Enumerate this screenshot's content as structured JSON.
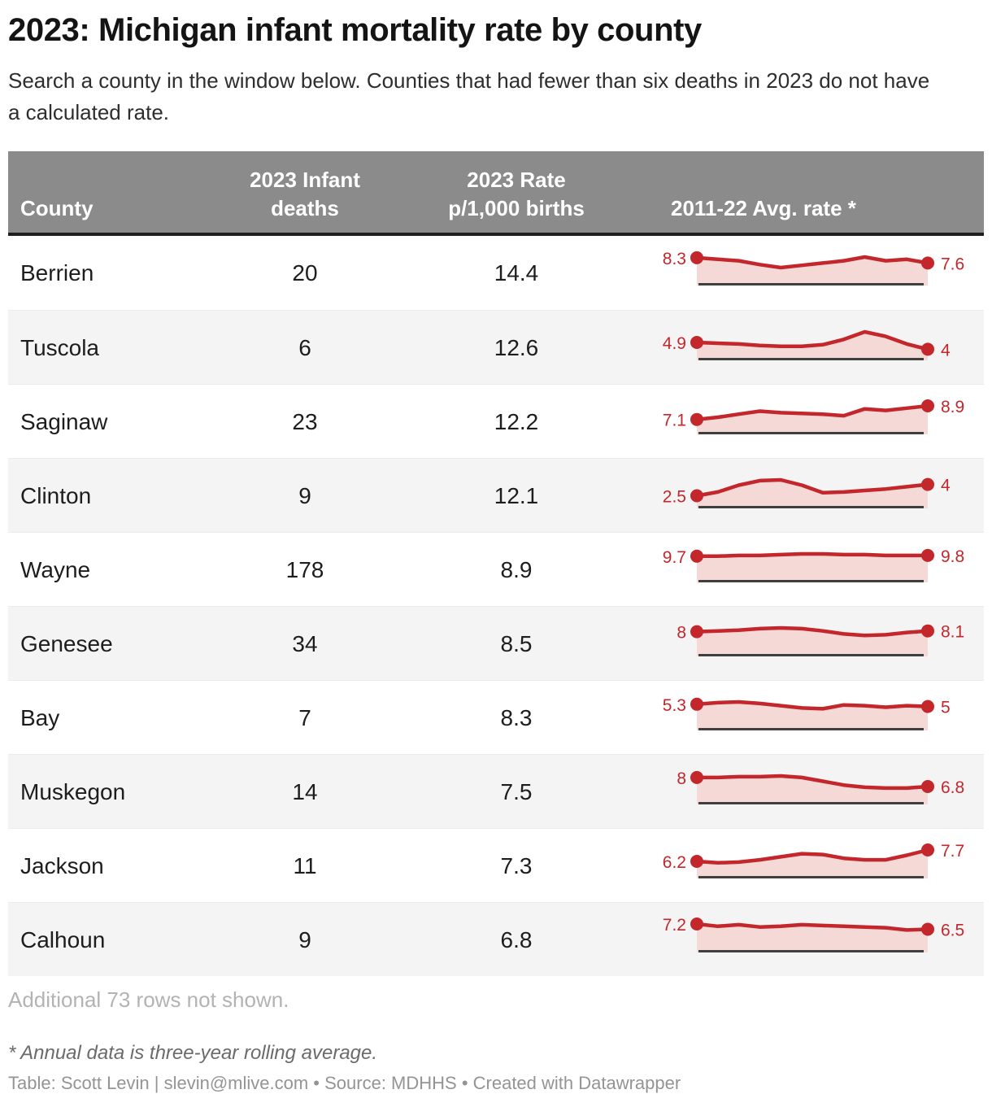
{
  "header": {
    "title": "2023: Michigan infant mortality rate by county",
    "subtitle": "Search a county in the window below. Counties that had fewer than six deaths in 2023 do not have a calculated rate."
  },
  "chart_data": {
    "type": "table",
    "title": "2023: Michigan infant mortality rate by county",
    "columns": [
      "County",
      "2023 Infant deaths",
      "2023 Rate p/1,000 births",
      "2011-22 Avg. rate *"
    ],
    "sparkline_period": "2011-22",
    "sparkline_note": "Sparkline shows three-year rolling average rate; start and end values labeled. Intermediate values estimated from line shape.",
    "rows": [
      {
        "county": "Berrien",
        "deaths": "20",
        "rate": "14.4",
        "spark": {
          "start_label": "8.3",
          "end_label": "7.6",
          "values": [
            8.3,
            8.1,
            7.9,
            7.4,
            7.0,
            7.3,
            7.6,
            7.9,
            8.4,
            7.9,
            8.1,
            7.6
          ]
        }
      },
      {
        "county": "Tuscola",
        "deaths": "6",
        "rate": "12.6",
        "spark": {
          "start_label": "4.9",
          "end_label": "4",
          "values": [
            4.9,
            4.8,
            4.7,
            4.5,
            4.4,
            4.4,
            4.6,
            5.3,
            6.3,
            5.7,
            4.7,
            4.0
          ]
        }
      },
      {
        "county": "Saginaw",
        "deaths": "23",
        "rate": "12.2",
        "spark": {
          "start_label": "7.1",
          "end_label": "8.9",
          "values": [
            7.1,
            7.4,
            7.8,
            8.2,
            8.0,
            7.9,
            7.8,
            7.6,
            8.5,
            8.3,
            8.6,
            8.9
          ]
        }
      },
      {
        "county": "Clinton",
        "deaths": "9",
        "rate": "12.1",
        "spark": {
          "start_label": "2.5",
          "end_label": "4",
          "values": [
            2.5,
            3.0,
            3.9,
            4.5,
            4.6,
            3.9,
            2.9,
            3.0,
            3.2,
            3.4,
            3.7,
            4.0
          ]
        }
      },
      {
        "county": "Wayne",
        "deaths": "178",
        "rate": "8.9",
        "spark": {
          "start_label": "9.7",
          "end_label": "9.8",
          "values": [
            9.7,
            9.7,
            9.8,
            9.8,
            9.9,
            10.0,
            10.0,
            9.9,
            9.9,
            9.8,
            9.8,
            9.8
          ]
        }
      },
      {
        "county": "Genesee",
        "deaths": "34",
        "rate": "8.5",
        "spark": {
          "start_label": "8",
          "end_label": "8.1",
          "values": [
            8.0,
            8.1,
            8.2,
            8.4,
            8.5,
            8.4,
            8.1,
            7.7,
            7.5,
            7.6,
            7.9,
            8.1
          ]
        }
      },
      {
        "county": "Bay",
        "deaths": "7",
        "rate": "8.3",
        "spark": {
          "start_label": "5.3",
          "end_label": "5",
          "values": [
            5.3,
            5.5,
            5.6,
            5.4,
            5.1,
            4.8,
            4.7,
            5.2,
            5.1,
            4.9,
            5.1,
            5.0
          ]
        }
      },
      {
        "county": "Muskegon",
        "deaths": "14",
        "rate": "7.5",
        "spark": {
          "start_label": "8",
          "end_label": "6.8",
          "values": [
            8.0,
            8.0,
            8.1,
            8.1,
            8.2,
            8.0,
            7.5,
            7.0,
            6.7,
            6.6,
            6.6,
            6.8
          ]
        }
      },
      {
        "county": "Jackson",
        "deaths": "11",
        "rate": "7.3",
        "spark": {
          "start_label": "6.2",
          "end_label": "7.7",
          "values": [
            6.2,
            6.0,
            6.1,
            6.4,
            6.8,
            7.2,
            7.1,
            6.6,
            6.4,
            6.4,
            7.0,
            7.7
          ]
        }
      },
      {
        "county": "Calhoun",
        "deaths": "9",
        "rate": "6.8",
        "spark": {
          "start_label": "7.2",
          "end_label": "6.5",
          "values": [
            7.2,
            6.9,
            7.1,
            6.8,
            6.9,
            7.1,
            7.0,
            6.9,
            6.8,
            6.7,
            6.4,
            6.5
          ]
        }
      }
    ]
  },
  "footer": {
    "additional_rows_note": "Additional 73 rows not shown.",
    "footnote": "* Annual data is three-year rolling average.",
    "attribution": "Table: Scott Levin | slevin@mlive.com • Source: MDHHS • Created with Datawrapper"
  },
  "colors": {
    "header_bg": "#8b8b8b",
    "header_text": "#ffffff",
    "row_alt_bg": "#f4f4f4",
    "spark_line": "#c4272b",
    "spark_fill": "#f5d9d7",
    "spark_baseline": "#3f3f3f",
    "text": "#1d1d1d"
  }
}
